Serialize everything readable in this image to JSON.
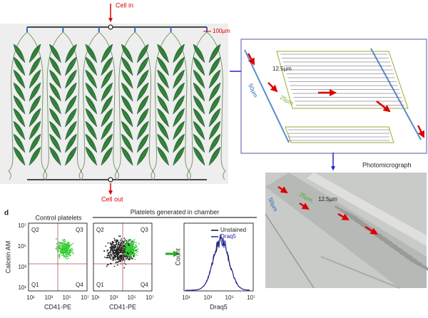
{
  "panel_top": {
    "cell_in": "Cell in",
    "cell_out": "Cell out",
    "scale": "100µm"
  },
  "zoom": {
    "w1": "12.5µm",
    "w2": "50µm",
    "w3": "25µm"
  },
  "photo": {
    "title": "Photomicrograph",
    "w1": "50µm",
    "w2": "25µm",
    "w3": "12.5µm"
  },
  "panel_d": {
    "letter": "d",
    "control_title": "Control platelets",
    "chamber_title": "Platelets generated in chamber",
    "scatter": {
      "quadrants": [
        "Q2",
        "Q3",
        "Q1",
        "Q4"
      ],
      "ticks": [
        "10¹",
        "10³",
        "10⁵",
        "10⁷"
      ],
      "x_label": "CD41-PE",
      "y_label": "Calcein AM"
    },
    "histogram": {
      "y_label": "Count",
      "x_label": "Draq5",
      "ticks": [
        "10¹",
        "10³",
        "10⁵",
        "10⁷"
      ],
      "legend": [
        "Unstained",
        "Draq5"
      ]
    }
  }
}
